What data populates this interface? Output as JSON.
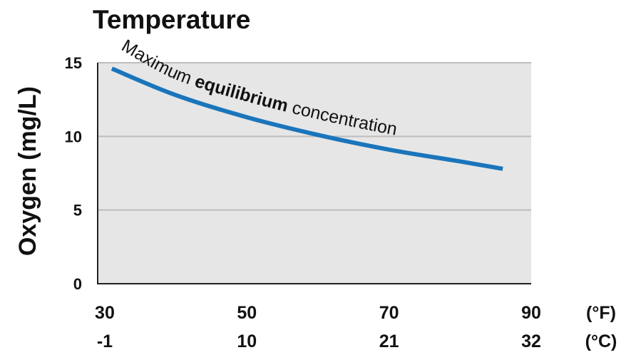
{
  "chart_data": {
    "type": "line",
    "title": "Temperature",
    "y_label": "Oxygen (mg/L)",
    "x": [
      31,
      40,
      50,
      60,
      70,
      80,
      86
    ],
    "series": [
      {
        "name": "Maximum equilibrium concentration",
        "color": "#1a75bb",
        "values": [
          14.6,
          12.8,
          11.3,
          10.1,
          9.1,
          8.3,
          7.8
        ]
      }
    ],
    "annotation_parts": [
      "Maximum ",
      "equilibrium",
      " concentration"
    ],
    "xlim": [
      29,
      90
    ],
    "xticks": [
      30,
      50,
      70,
      90
    ],
    "x_unit": "(°F)",
    "xticks_celsius": [
      -1,
      10,
      21,
      32
    ],
    "x_unit_celsius": "(°C)",
    "ylim": [
      0,
      15
    ],
    "yticks": [
      0,
      5,
      10,
      15
    ],
    "grid": true
  }
}
